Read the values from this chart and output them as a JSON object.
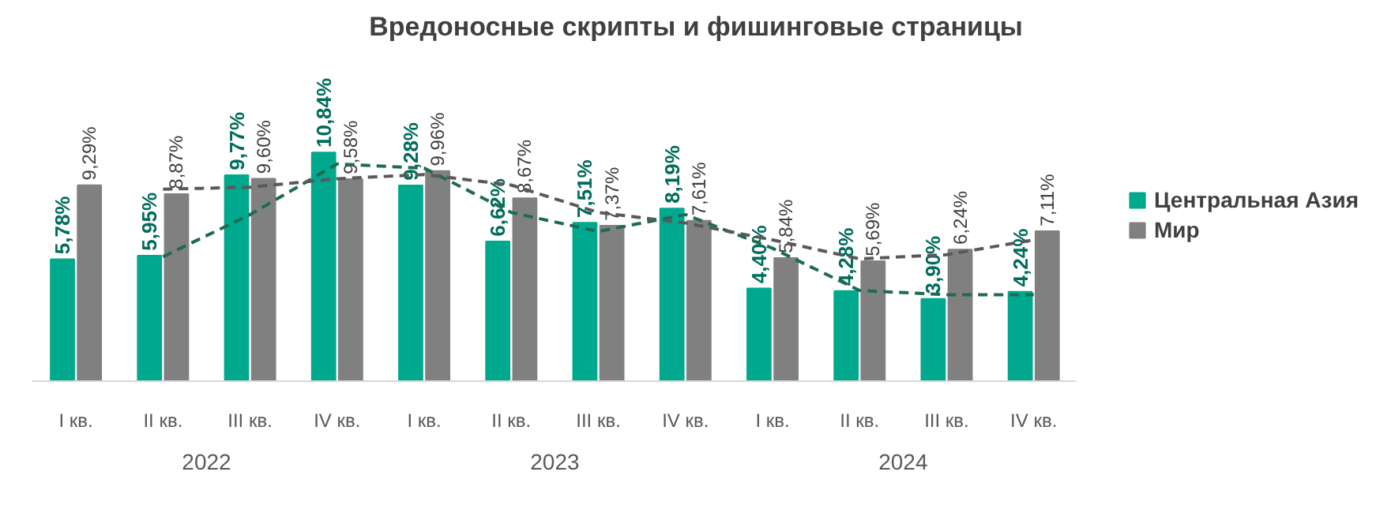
{
  "chart_data": {
    "type": "bar",
    "title": "Вредоносные скрипты и фишинговые страницы",
    "categories": [
      "I кв.",
      "II кв.",
      "III кв.",
      "IV кв.",
      "I кв.",
      "II кв.",
      "III кв.",
      "IV кв.",
      "I кв.",
      "II кв.",
      "III кв.",
      "IV кв."
    ],
    "annotations": [
      "2022",
      "2023",
      "2024"
    ],
    "legend": "right",
    "series": [
      {
        "name": "Центральная Азия",
        "color": "#00a88e",
        "values": [
          5.78,
          5.95,
          9.77,
          10.84,
          9.28,
          6.62,
          7.51,
          8.19,
          4.4,
          4.28,
          3.9,
          4.24
        ],
        "value_labels": [
          "5,78%",
          "5,95%",
          "9,77%",
          "10,84%",
          "9,28%",
          "6,62%",
          "7,51%",
          "8,19%",
          "4,40%",
          "4,28%",
          "3,90%",
          "4,24%"
        ]
      },
      {
        "name": "Мир",
        "color": "#808080",
        "values": [
          9.29,
          8.87,
          9.6,
          9.58,
          9.96,
          8.67,
          7.37,
          7.61,
          5.84,
          5.69,
          6.24,
          7.11
        ],
        "value_labels": [
          "9,29%",
          "8,87%",
          "9,60%",
          "9,58%",
          "9,96%",
          "8,67%",
          "7,37%",
          "7,61%",
          "5,84%",
          "5,69%",
          "6,24%",
          "7,11%"
        ]
      },
      {
        "type": "line",
        "line_style": "dashed",
        "color": "#1e6b52",
        "values": [
          null,
          5.9,
          7.9,
          10.3,
          10.1,
          8.0,
          7.1,
          7.9,
          6.3,
          4.3,
          4.1,
          4.1
        ]
      },
      {
        "type": "line",
        "line_style": "dashed",
        "color": "#595959",
        "values": [
          null,
          9.1,
          9.2,
          9.6,
          9.8,
          9.3,
          8.0,
          7.5,
          6.7,
          5.8,
          6.0,
          6.7
        ]
      }
    ]
  }
}
